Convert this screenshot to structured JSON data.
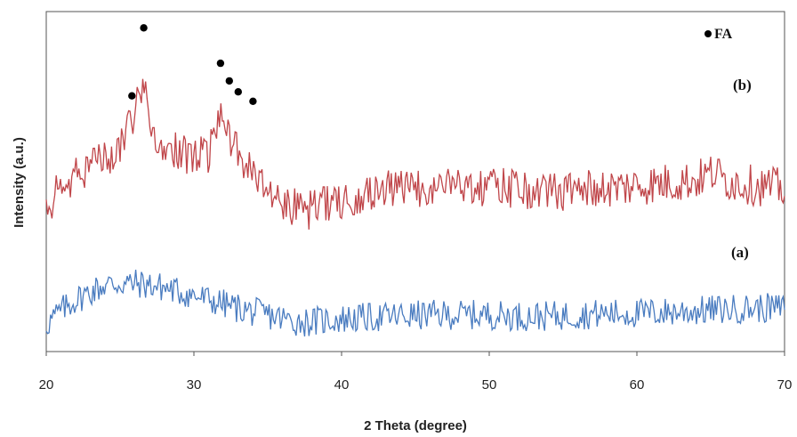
{
  "chart_data": {
    "type": "line",
    "title": "",
    "xlabel": "2 Theta (degree)",
    "ylabel": "Intensity (a.u.)",
    "xlim": [
      20,
      70
    ],
    "x_ticks": [
      "20",
      "30",
      "40",
      "50",
      "60",
      "70"
    ],
    "y_ticks": "none",
    "grid": false,
    "legend": {
      "placement": "top-right",
      "marker": "filled-circle",
      "label": "FA"
    },
    "colors": {
      "a": "#4a7cc0",
      "b": "#c0464a",
      "marker": "#000000",
      "axis": "#555555"
    },
    "series": [
      {
        "label": "(a)",
        "x": [
          20,
          21,
          22,
          23,
          24,
          25,
          26,
          27,
          28,
          29,
          30,
          31,
          32,
          33,
          34,
          35,
          36,
          37,
          38,
          39,
          40,
          42,
          44,
          46,
          48,
          50,
          52,
          54,
          56,
          58,
          60,
          62,
          64,
          66,
          68,
          70
        ],
        "y": [
          1.0,
          1.5,
          1.9,
          2.2,
          2.45,
          2.5,
          2.5,
          2.45,
          2.35,
          2.2,
          2.05,
          1.9,
          1.75,
          1.6,
          1.45,
          1.35,
          1.2,
          1.1,
          1.1,
          1.15,
          1.2,
          1.25,
          1.3,
          1.35,
          1.35,
          1.35,
          1.3,
          1.3,
          1.35,
          1.4,
          1.4,
          1.45,
          1.5,
          1.55,
          1.6,
          1.6
        ]
      },
      {
        "label": "(b)",
        "x": [
          20,
          21,
          22,
          23,
          24,
          25,
          25.8,
          26.6,
          27,
          28,
          29,
          30,
          31,
          31.8,
          32.4,
          33,
          34,
          35,
          36,
          37,
          38,
          39,
          40,
          42,
          44,
          46,
          47,
          48,
          49,
          50,
          52,
          54,
          56,
          58,
          60,
          62,
          64,
          65.2,
          66,
          68,
          70
        ],
        "y": [
          5.4,
          6.0,
          6.4,
          6.9,
          7.2,
          7.5,
          8.5,
          10.2,
          7.6,
          7.4,
          7.3,
          7.1,
          7.3,
          9.1,
          8.0,
          7.4,
          6.5,
          6.0,
          5.6,
          5.3,
          5.2,
          5.4,
          5.6,
          5.9,
          5.95,
          6.0,
          6.3,
          6.1,
          6.2,
          6.0,
          6.0,
          5.9,
          5.95,
          6.0,
          6.1,
          6.2,
          6.3,
          6.6,
          6.3,
          6.1,
          6.0
        ]
      }
    ],
    "annotations": [
      {
        "text": "(b)"
      },
      {
        "text": "(a)"
      }
    ],
    "markers_FA_x": [
      25.8,
      26.6,
      31.8,
      32.4,
      33.0,
      34.0
    ],
    "markers_FA_y": [
      9.4,
      11.9,
      10.6,
      9.95,
      9.55,
      9.2
    ]
  }
}
